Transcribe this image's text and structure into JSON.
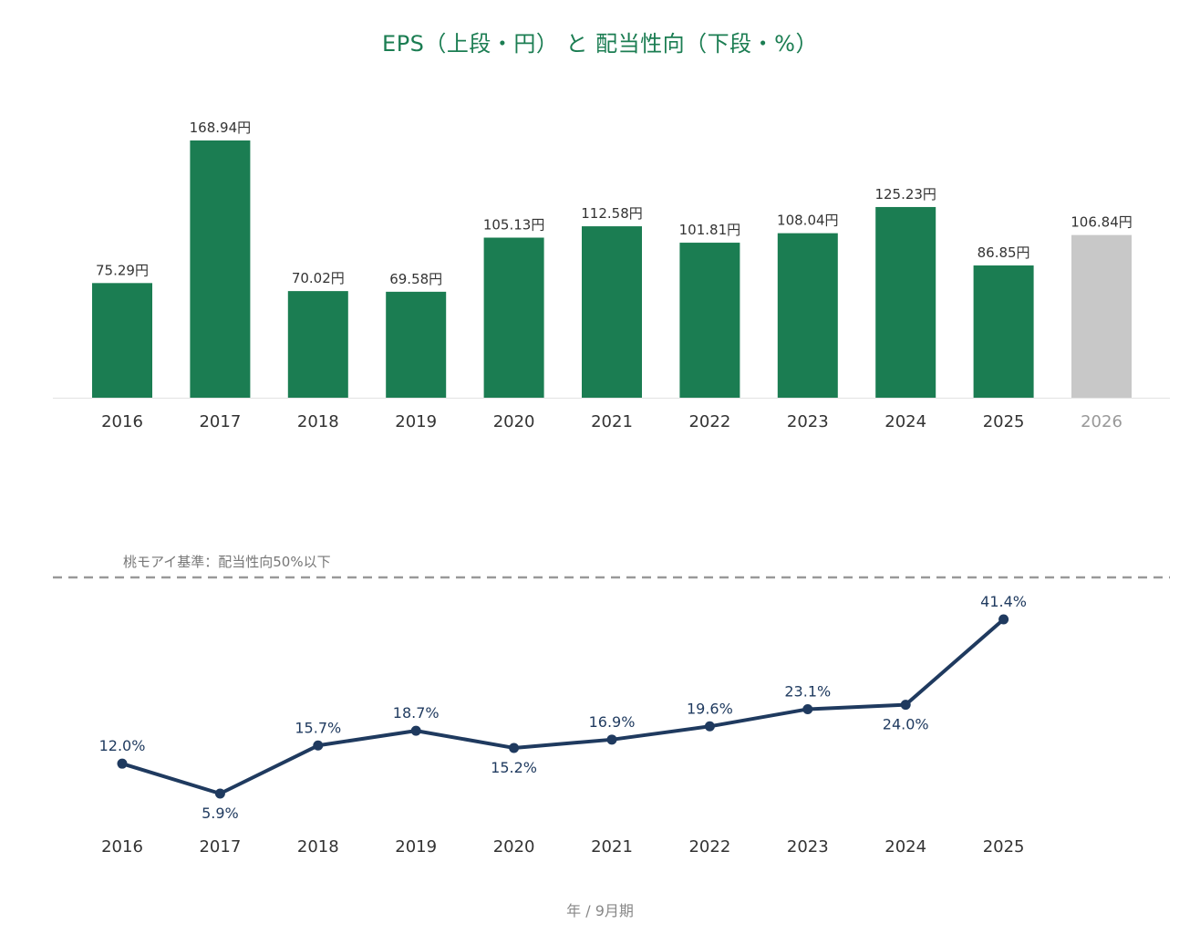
{
  "title": "EPS（上段・円） と 配当性向（下段・%）",
  "x_caption": "年 / 9月期",
  "colors": {
    "title": "#1b7d52",
    "bar_actual": "#1b7d52",
    "bar_forecast": "#c8c8c8",
    "line": "#1f3a5f",
    "label": "#333333",
    "forecast_label": "#999999",
    "threshold": "#999999",
    "axis": "#e3e3e3"
  },
  "chart_data": [
    {
      "type": "bar",
      "categories": [
        "2016",
        "2017",
        "2018",
        "2019",
        "2020",
        "2021",
        "2022",
        "2023",
        "2024",
        "2025",
        "2026"
      ],
      "values": [
        75.29,
        168.94,
        70.02,
        69.58,
        105.13,
        112.58,
        101.81,
        108.04,
        125.23,
        86.85,
        106.84
      ],
      "labels": [
        "75.29円",
        "168.94円",
        "70.02円",
        "69.58円",
        "105.13円",
        "112.58円",
        "101.81円",
        "108.04円",
        "125.23円",
        "86.85円",
        "106.84円"
      ],
      "forecast_index": 10,
      "ylim": [
        0,
        168.94
      ]
    },
    {
      "type": "line",
      "categories": [
        "2016",
        "2017",
        "2018",
        "2019",
        "2020",
        "2021",
        "2022",
        "2023",
        "2024",
        "2025"
      ],
      "values": [
        12.0,
        5.9,
        15.7,
        18.7,
        15.2,
        16.9,
        19.6,
        23.1,
        24.0,
        41.4
      ],
      "labels": [
        "12.0%",
        "5.9%",
        "15.7%",
        "18.7%",
        "15.2%",
        "16.9%",
        "19.6%",
        "23.1%",
        "24.0%",
        "41.4%"
      ],
      "label_positions": [
        "above",
        "below",
        "above",
        "above",
        "below",
        "above",
        "above",
        "above",
        "below",
        "above"
      ],
      "threshold": {
        "value": 50,
        "label": "桃モアイ基準：配当性向50%以下",
        "style": "dashed"
      }
    }
  ]
}
